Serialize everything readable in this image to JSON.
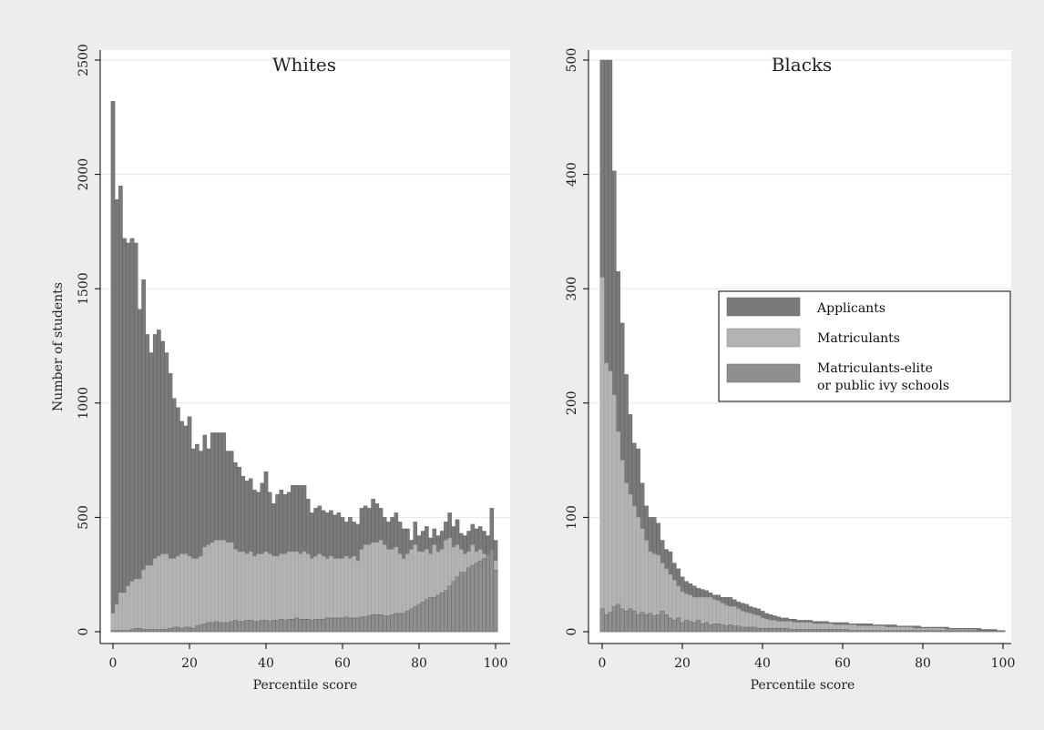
{
  "legend": {
    "items": [
      {
        "label": "Applicants",
        "color": "#7a7a7a"
      },
      {
        "label": "Matriculants",
        "color": "#b3b3b3"
      },
      {
        "label_lines": [
          "Matriculants-elite",
          "or public ivy schools"
        ],
        "color": "#8f8f8f"
      }
    ]
  },
  "chart_data": [
    {
      "type": "bar",
      "title": "Whites",
      "xlabel": "Percentile score",
      "ylabel": "Number of students",
      "xlim": [
        0,
        100
      ],
      "ylim": [
        0,
        2500
      ],
      "xticks": [
        "0",
        "20",
        "40",
        "60",
        "80",
        "100"
      ],
      "yticks": [
        "0",
        "500",
        "1000",
        "1500",
        "2000",
        "2500"
      ],
      "grid": true,
      "series": [
        {
          "name": "Applicants",
          "values": [
            2320,
            1890,
            1950,
            1720,
            1700,
            1720,
            1700,
            1410,
            1540,
            1300,
            1220,
            1300,
            1320,
            1270,
            1220,
            1130,
            1020,
            980,
            920,
            900,
            940,
            800,
            820,
            790,
            860,
            800,
            870,
            870,
            870,
            870,
            790,
            790,
            740,
            720,
            680,
            660,
            670,
            620,
            610,
            650,
            700,
            610,
            560,
            600,
            620,
            600,
            610,
            640,
            640,
            640,
            640,
            580,
            520,
            540,
            550,
            530,
            520,
            530,
            510,
            520,
            500,
            480,
            500,
            480,
            470,
            540,
            550,
            540,
            580,
            560,
            540,
            500,
            480,
            500,
            520,
            480,
            450,
            450,
            400,
            480,
            420,
            440,
            460,
            410,
            450,
            420,
            440,
            480,
            520,
            460,
            490,
            430,
            420,
            440,
            470,
            450,
            460,
            440,
            420,
            540,
            400
          ]
        },
        {
          "name": "Matriculants",
          "values": [
            80,
            120,
            170,
            170,
            200,
            220,
            230,
            230,
            270,
            290,
            290,
            320,
            330,
            340,
            340,
            320,
            320,
            330,
            340,
            340,
            330,
            320,
            320,
            330,
            370,
            380,
            390,
            400,
            400,
            400,
            390,
            390,
            360,
            350,
            350,
            340,
            350,
            330,
            340,
            340,
            350,
            340,
            330,
            330,
            340,
            340,
            350,
            350,
            350,
            340,
            350,
            340,
            320,
            330,
            340,
            330,
            320,
            330,
            320,
            320,
            320,
            330,
            320,
            330,
            310,
            360,
            380,
            380,
            390,
            390,
            400,
            380,
            360,
            360,
            370,
            340,
            320,
            340,
            360,
            380,
            350,
            350,
            360,
            340,
            380,
            350,
            360,
            400,
            410,
            370,
            380,
            360,
            340,
            350,
            380,
            350,
            360,
            340,
            330,
            360,
            310
          ]
        },
        {
          "name": "Matriculants-elite or public ivy schools",
          "values": [
            5,
            5,
            5,
            5,
            5,
            10,
            15,
            15,
            10,
            10,
            10,
            10,
            10,
            10,
            10,
            15,
            20,
            20,
            15,
            20,
            20,
            15,
            25,
            30,
            35,
            40,
            40,
            45,
            40,
            40,
            40,
            45,
            50,
            45,
            45,
            50,
            50,
            45,
            45,
            50,
            50,
            45,
            50,
            50,
            55,
            50,
            55,
            55,
            60,
            55,
            55,
            55,
            50,
            55,
            55,
            55,
            60,
            60,
            60,
            60,
            60,
            65,
            60,
            60,
            60,
            65,
            65,
            70,
            75,
            75,
            75,
            70,
            70,
            75,
            80,
            80,
            80,
            90,
            100,
            110,
            120,
            130,
            140,
            150,
            150,
            160,
            170,
            180,
            200,
            220,
            240,
            260,
            260,
            280,
            290,
            300,
            310,
            320,
            340,
            360,
            270
          ]
        }
      ]
    },
    {
      "type": "bar",
      "title": "Blacks",
      "xlabel": "Percentile score",
      "ylabel": "",
      "xlim": [
        0,
        100
      ],
      "ylim": [
        0,
        500
      ],
      "xticks": [
        "0",
        "20",
        "40",
        "60",
        "80",
        "100"
      ],
      "yticks": [
        "0",
        "100",
        "200",
        "300",
        "400",
        "500"
      ],
      "grid": true,
      "series": [
        {
          "name": "Applicants",
          "values": [
            500,
            500,
            500,
            403,
            315,
            270,
            225,
            190,
            165,
            160,
            130,
            110,
            100,
            100,
            95,
            80,
            72,
            70,
            60,
            55,
            48,
            44,
            42,
            40,
            38,
            37,
            36,
            34,
            32,
            32,
            30,
            30,
            30,
            28,
            26,
            25,
            24,
            22,
            21,
            20,
            18,
            16,
            15,
            14,
            13,
            12,
            12,
            11,
            11,
            10,
            10,
            10,
            10,
            9,
            9,
            9,
            9,
            8,
            8,
            8,
            8,
            8,
            7,
            7,
            7,
            7,
            7,
            7,
            6,
            6,
            6,
            6,
            6,
            6,
            5,
            5,
            5,
            5,
            5,
            5,
            4,
            4,
            4,
            4,
            4,
            4,
            4,
            3,
            3,
            3,
            3,
            3,
            3,
            3,
            3,
            2,
            2,
            2,
            2,
            1,
            1
          ]
        },
        {
          "name": "Matriculants",
          "values": [
            310,
            235,
            228,
            207,
            175,
            150,
            130,
            120,
            110,
            100,
            90,
            80,
            70,
            68,
            67,
            60,
            55,
            50,
            45,
            40,
            35,
            33,
            32,
            30,
            30,
            30,
            30,
            30,
            28,
            27,
            25,
            23,
            22,
            22,
            20,
            18,
            17,
            16,
            15,
            14,
            12,
            11,
            10,
            10,
            9,
            9,
            9,
            9,
            8,
            8,
            8,
            8,
            8,
            7,
            7,
            7,
            7,
            7,
            6,
            6,
            6,
            6,
            6,
            6,
            5,
            5,
            5,
            5,
            5,
            5,
            5,
            4,
            4,
            4,
            4,
            4,
            4,
            4,
            3,
            3,
            3,
            3,
            3,
            3,
            3,
            3,
            2,
            2,
            2,
            2,
            2,
            2,
            2,
            2,
            1,
            1,
            1,
            1,
            1,
            1,
            1
          ]
        },
        {
          "name": "Matriculants-elite or public ivy schools",
          "values": [
            20,
            15,
            17,
            22,
            24,
            20,
            18,
            20,
            18,
            15,
            17,
            15,
            16,
            14,
            15,
            18,
            15,
            12,
            10,
            12,
            8,
            10,
            9,
            8,
            10,
            7,
            8,
            6,
            7,
            7,
            6,
            5,
            6,
            5,
            5,
            4,
            4,
            4,
            4,
            3,
            3,
            3,
            3,
            3,
            3,
            3,
            3,
            2,
            2,
            2,
            2,
            2,
            2,
            2,
            2,
            2,
            2,
            2,
            2,
            2,
            2,
            2,
            1,
            1,
            1,
            1,
            1,
            1,
            1,
            1,
            1,
            1,
            1,
            1,
            1,
            1,
            1,
            1,
            1,
            1,
            1,
            1,
            1,
            1,
            1,
            1,
            1,
            1,
            1,
            1,
            1,
            1,
            1,
            1,
            1,
            1,
            1,
            1,
            1,
            1,
            1
          ]
        }
      ]
    }
  ]
}
